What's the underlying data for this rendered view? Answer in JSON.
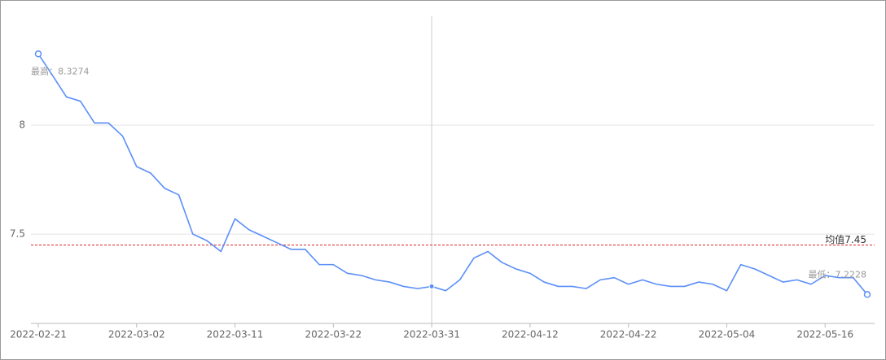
{
  "chart_data": {
    "type": "line",
    "categories": [
      "2022-02-21",
      null,
      null,
      null,
      null,
      null,
      null,
      "2022-03-02",
      null,
      null,
      null,
      null,
      null,
      null,
      "2022-03-11",
      null,
      null,
      null,
      null,
      null,
      null,
      "2022-03-22",
      null,
      null,
      null,
      null,
      null,
      null,
      "2022-03-31",
      null,
      null,
      null,
      null,
      null,
      null,
      "2022-04-12",
      null,
      null,
      null,
      null,
      null,
      null,
      "2022-04-22",
      null,
      null,
      null,
      null,
      null,
      null,
      "2022-05-04",
      null,
      null,
      null,
      null,
      null,
      null,
      "2022-05-16",
      null,
      null,
      null
    ],
    "series": [
      {
        "color": "#5b8ff9",
        "values": [
          8.3274,
          8.23,
          8.13,
          8.11,
          8.01,
          8.01,
          7.95,
          7.81,
          7.78,
          7.71,
          7.68,
          7.5,
          7.47,
          7.42,
          7.57,
          7.52,
          7.49,
          7.46,
          7.43,
          7.43,
          7.36,
          7.36,
          7.32,
          7.31,
          7.29,
          7.28,
          7.26,
          7.25,
          7.26,
          7.24,
          7.29,
          7.39,
          7.42,
          7.37,
          7.34,
          7.32,
          7.28,
          7.26,
          7.26,
          7.25,
          7.29,
          7.3,
          7.27,
          7.29,
          7.27,
          7.26,
          7.26,
          7.28,
          7.27,
          7.24,
          7.36,
          7.34,
          7.31,
          7.28,
          7.29,
          7.27,
          7.31,
          7.3,
          7.3,
          7.2228
        ]
      }
    ],
    "ylim": [
      7.09,
      8.5
    ],
    "yticks": [
      7.5,
      8
    ],
    "grid": true,
    "mean_line": {
      "value": 7.45,
      "label": "均值7.45",
      "color": "#d62728"
    },
    "max_annotation": {
      "index": 0,
      "label": "最高：8.3274"
    },
    "min_annotation": {
      "index": 59,
      "label": "最低：7.2228"
    },
    "hover_index": 28
  }
}
